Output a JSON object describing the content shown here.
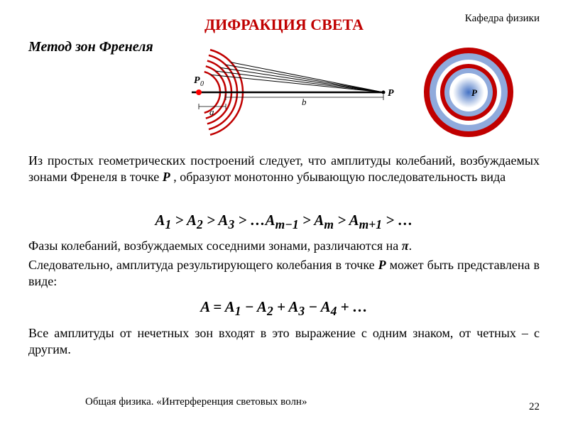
{
  "header": {
    "department": "Кафедра физики",
    "title": "ДИФРАКЦИЯ СВЕТА",
    "title_color": "#c00000",
    "subtitle": "Метод зон Френеля"
  },
  "diagram": {
    "arc_color": "#c00000",
    "arc_stroke_width": 2.5,
    "axis_color": "#000000",
    "ray_color": "#000000",
    "point_fill": "#ff0000",
    "labels": {
      "P0": "P",
      "P0_sub": "0",
      "P": "P",
      "a": "a",
      "b": "b"
    },
    "label_fontsize": 13,
    "circle_pattern": {
      "outer_border": "#c00000",
      "rings": [
        {
          "r": 62,
          "fill": "#c00000"
        },
        {
          "r": 55,
          "fill": "#8faadc"
        },
        {
          "r": 46,
          "fill": "#ffffff"
        },
        {
          "r": 40,
          "fill": "#c00000"
        },
        {
          "r": 34,
          "fill": "#8faadc"
        },
        {
          "r": 27,
          "fill": "#ffffff"
        }
      ],
      "center_blur_color": "#4472c4",
      "P_label": "P"
    }
  },
  "text": {
    "para1_pre": "Из простых геометрических построений следует, что амплитуды колебаний, возбуждаемых  зонами Френеля  в точке ",
    "para1_P": "P",
    "para1_post": " , образуют монотонно убывающую последовательность вида",
    "formula1_html": "A<sub>1</sub> &gt; A<sub>2</sub> &gt; A<sub>3</sub> &gt; …A<sub>m−1</sub> &gt; A<sub>m</sub> &gt; A<sub>m+1</sub> &gt; …",
    "para2_pre": "Фазы колебаний, возбуждаемых соседними зонами, различаются на ",
    "para2_pi": "π",
    "para2_post": ".",
    "para3_pre": "Следовательно,  амплитуда   результирующего   колебания в точке  ",
    "para3_P": "P",
    "para3_post": "  может быть представлена в виде:",
    "formula2_html": "A = A<sub>1</sub> − A<sub>2</sub> + A<sub>3</sub> − A<sub>4</sub> + …",
    "para4": "Все амплитуды от нечетных зон входят в это выражение с одним знаком, от четных – с другим."
  },
  "footer": {
    "left": "Общая физика.   «Интерференция световых волн»",
    "page": "22"
  },
  "style": {
    "body_fontsize": 18,
    "formula_fontsize": 21,
    "bg": "#ffffff"
  }
}
